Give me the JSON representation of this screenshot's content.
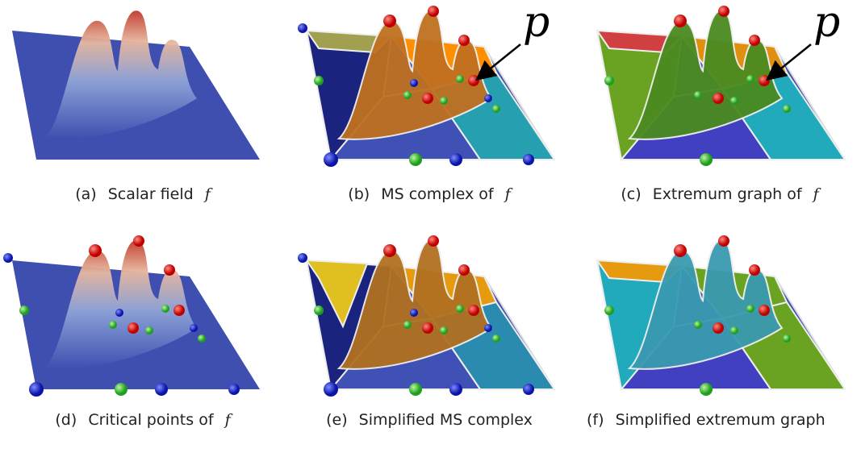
{
  "figure": {
    "panels": [
      {
        "label": "(a)",
        "caption": "Scalar field",
        "symbol": "f"
      },
      {
        "label": "(b)",
        "caption": "MS complex of",
        "symbol": "f"
      },
      {
        "label": "(c)",
        "caption": "Extremum graph of",
        "symbol": "f"
      },
      {
        "label": "(d)",
        "caption": "Critical points of",
        "symbol": "f"
      },
      {
        "label": "(e)",
        "caption": "Simplified MS complex"
      },
      {
        "label": "(f)",
        "caption": "Simplified extremum graph"
      }
    ],
    "annotations": [
      "p",
      "p"
    ]
  }
}
